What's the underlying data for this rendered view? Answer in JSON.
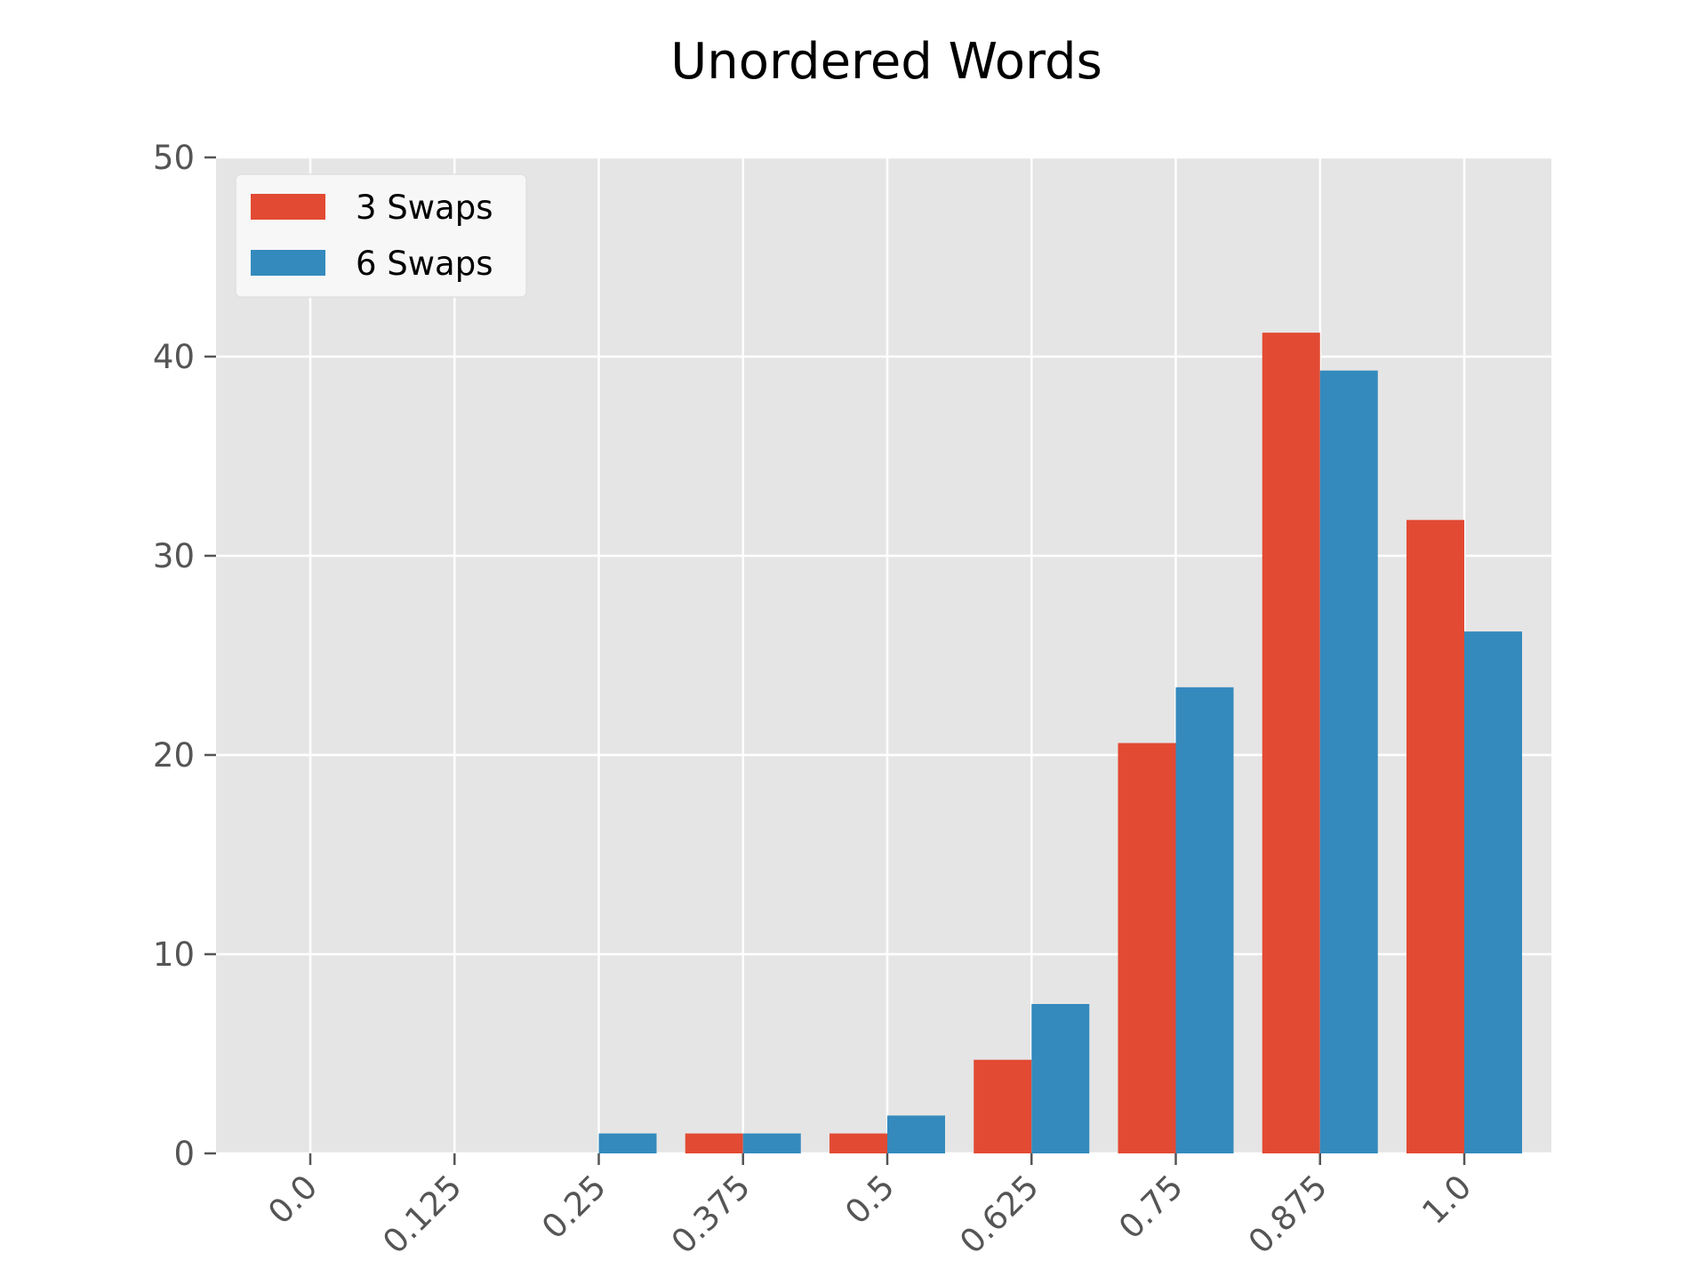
{
  "chart_data": {
    "type": "bar",
    "title": "Unordered Words",
    "xlabel": "",
    "ylabel": "",
    "categories": [
      "0.0",
      "0.125",
      "0.25",
      "0.375",
      "0.5",
      "0.625",
      "0.75",
      "0.875",
      "1.0"
    ],
    "series": [
      {
        "name": "3 Swaps",
        "color": "#E24A33",
        "values": [
          0,
          0,
          0,
          1,
          1,
          4.7,
          20.6,
          41.2,
          31.8
        ]
      },
      {
        "name": "6 Swaps",
        "color": "#348ABD",
        "values": [
          0,
          0,
          1,
          1,
          1.9,
          7.5,
          23.4,
          39.3,
          26.2
        ]
      }
    ],
    "ylim": [
      0,
      50
    ],
    "yticks": [
      "0",
      "10",
      "20",
      "30",
      "40",
      "50"
    ],
    "grid": true,
    "legend_position": "top-left",
    "plot_background": "#E5E5E5",
    "grid_color": "#FFFFFF",
    "x_tick_rotation_deg": 45
  }
}
